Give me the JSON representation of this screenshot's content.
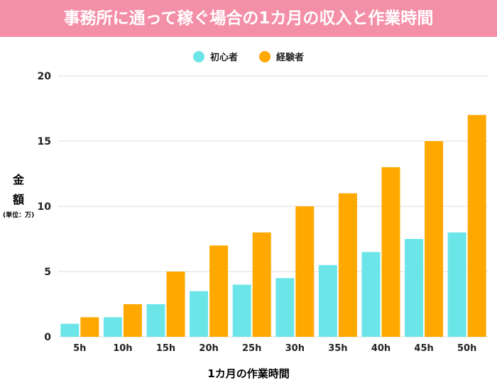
{
  "chart_data": {
    "type": "bar",
    "title": "事務所に通って稼ぐ場合の1カ月の収入と作業時間",
    "xlabel": "1カ月の作業時間",
    "ylabel": "金額",
    "yunit": "(単位：万)",
    "categories": [
      "5h",
      "10h",
      "15h",
      "20h",
      "25h",
      "30h",
      "35h",
      "40h",
      "45h",
      "50h"
    ],
    "series": [
      {
        "name": "初心者",
        "color": "#6ce5e8",
        "values": [
          1,
          1.5,
          2.5,
          3.5,
          4,
          4.5,
          5.5,
          6.5,
          7.5,
          8
        ]
      },
      {
        "name": "経験者",
        "color": "#ffa800",
        "values": [
          1.5,
          2.5,
          5,
          7,
          8,
          10,
          11,
          13,
          15,
          17
        ]
      }
    ],
    "ylim": [
      0,
      20
    ],
    "yticks": [
      0,
      5,
      10,
      15,
      20
    ],
    "grid": true,
    "legend": "top-center"
  }
}
